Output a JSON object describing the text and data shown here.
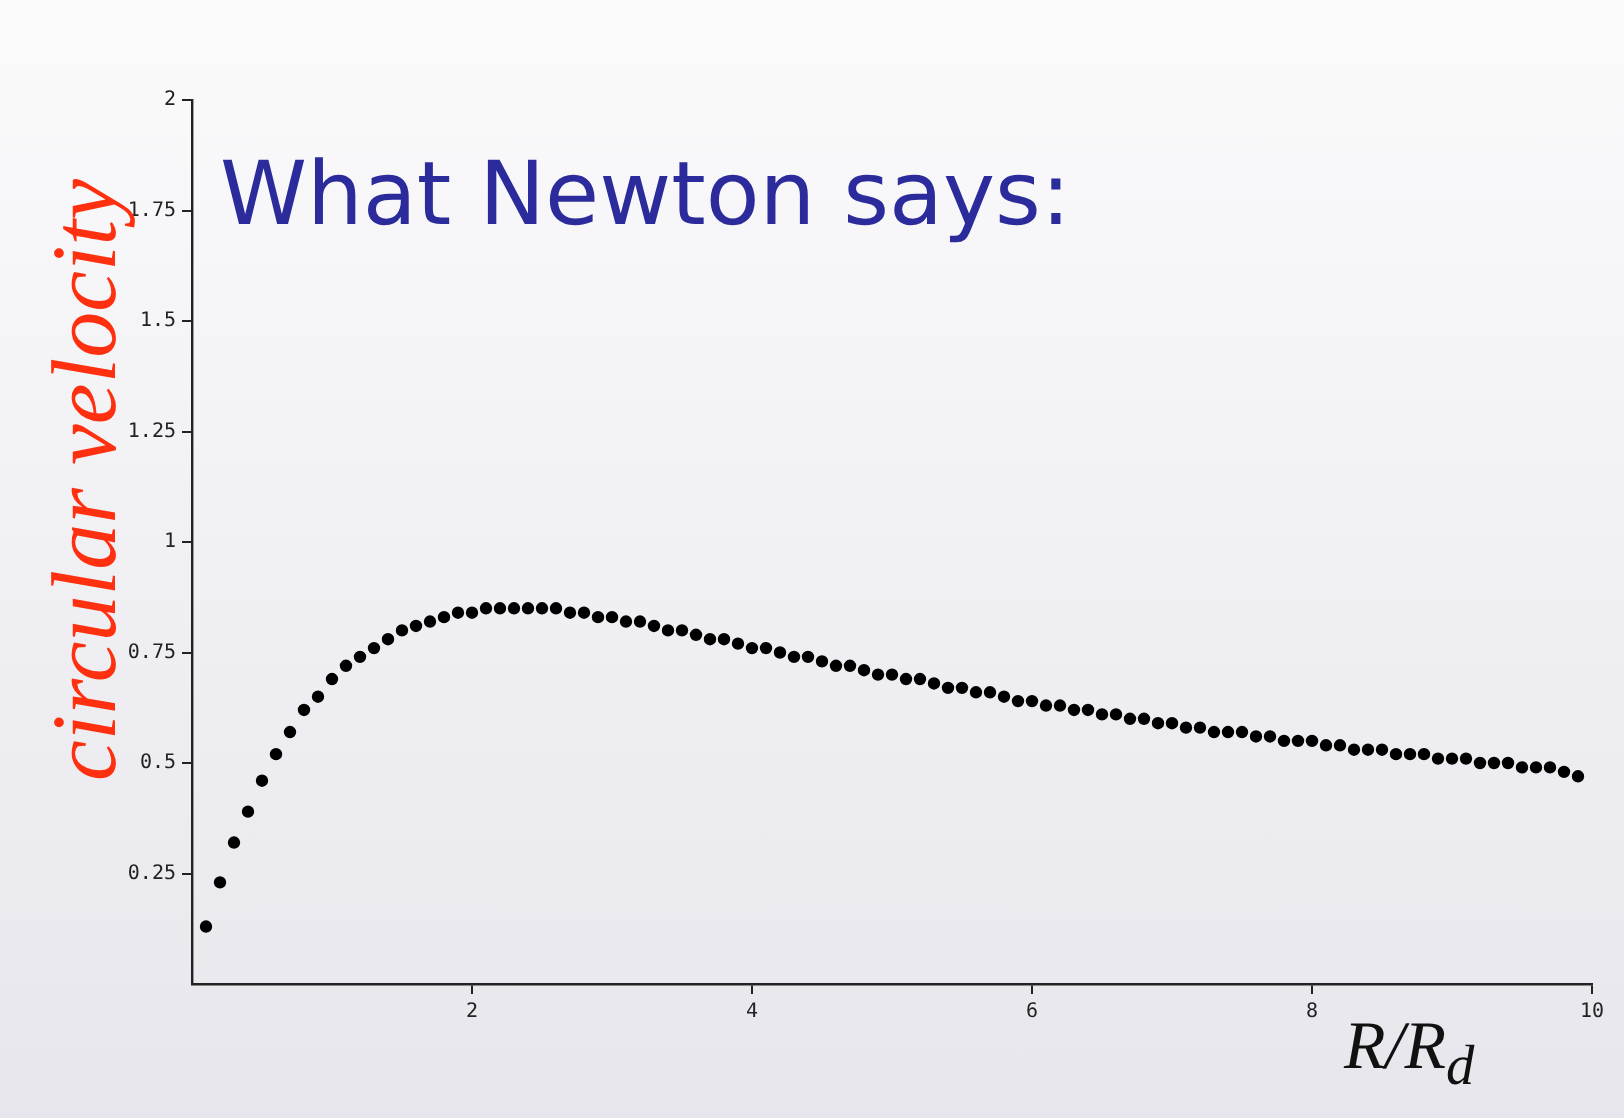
{
  "chart_data": {
    "type": "scatter",
    "title": "What Newton says:",
    "ylabel": "circular velocity",
    "xlabel": "R/R$_{d}$",
    "x": [
      0.1,
      0.2,
      0.3,
      0.4,
      0.5,
      0.6,
      0.7,
      0.8,
      0.9,
      1.0,
      1.1,
      1.2,
      1.3,
      1.4,
      1.5,
      1.6,
      1.7,
      1.8,
      1.9,
      2.0,
      2.1,
      2.2,
      2.3,
      2.4,
      2.5,
      2.6,
      2.7,
      2.8,
      2.9,
      3.0,
      3.1,
      3.2,
      3.3,
      3.4,
      3.5,
      3.6,
      3.7,
      3.8,
      3.9,
      4.0,
      4.1,
      4.2,
      4.3,
      4.4,
      4.5,
      4.6,
      4.7,
      4.8,
      4.9,
      5.0,
      5.1,
      5.2,
      5.3,
      5.4,
      5.5,
      5.6,
      5.7,
      5.8,
      5.9,
      6.0,
      6.1,
      6.2,
      6.3,
      6.4,
      6.5,
      6.6,
      6.7,
      6.8,
      6.9,
      7.0,
      7.1,
      7.2,
      7.3,
      7.4,
      7.5,
      7.6,
      7.7,
      7.8,
      7.9,
      8.0,
      8.1,
      8.2,
      8.3,
      8.4,
      8.5,
      8.6,
      8.7,
      8.8,
      8.9,
      9.0,
      9.1,
      9.2,
      9.3,
      9.4,
      9.5,
      9.6,
      9.7,
      9.8,
      9.9
    ],
    "series": [
      {
        "color": "#000000",
        "values": [
          0.13,
          0.23,
          0.32,
          0.39,
          0.46,
          0.52,
          0.57,
          0.62,
          0.65,
          0.69,
          0.72,
          0.74,
          0.76,
          0.78,
          0.8,
          0.81,
          0.82,
          0.83,
          0.84,
          0.84,
          0.85,
          0.85,
          0.85,
          0.85,
          0.85,
          0.85,
          0.84,
          0.84,
          0.83,
          0.83,
          0.82,
          0.82,
          0.81,
          0.8,
          0.8,
          0.79,
          0.78,
          0.78,
          0.77,
          0.76,
          0.76,
          0.75,
          0.74,
          0.74,
          0.73,
          0.72,
          0.72,
          0.71,
          0.7,
          0.7,
          0.69,
          0.69,
          0.68,
          0.67,
          0.67,
          0.66,
          0.66,
          0.65,
          0.64,
          0.64,
          0.63,
          0.63,
          0.62,
          0.62,
          0.61,
          0.61,
          0.6,
          0.6,
          0.59,
          0.59,
          0.58,
          0.58,
          0.57,
          0.57,
          0.57,
          0.56,
          0.56,
          0.55,
          0.55,
          0.55,
          0.54,
          0.54,
          0.53,
          0.53,
          0.53,
          0.52,
          0.52,
          0.52,
          0.51,
          0.51,
          0.51,
          0.5,
          0.5,
          0.5,
          0.49,
          0.49,
          0.49,
          0.48,
          0.47
        ]
      }
    ],
    "xlim": [
      0,
      10
    ],
    "ylim": [
      0,
      2
    ],
    "xticks": [
      2,
      4,
      6,
      8,
      10
    ],
    "yticks": [
      0.25,
      0.5,
      0.75,
      1,
      1.25,
      1.5,
      1.75,
      2
    ],
    "marker": "circle"
  }
}
